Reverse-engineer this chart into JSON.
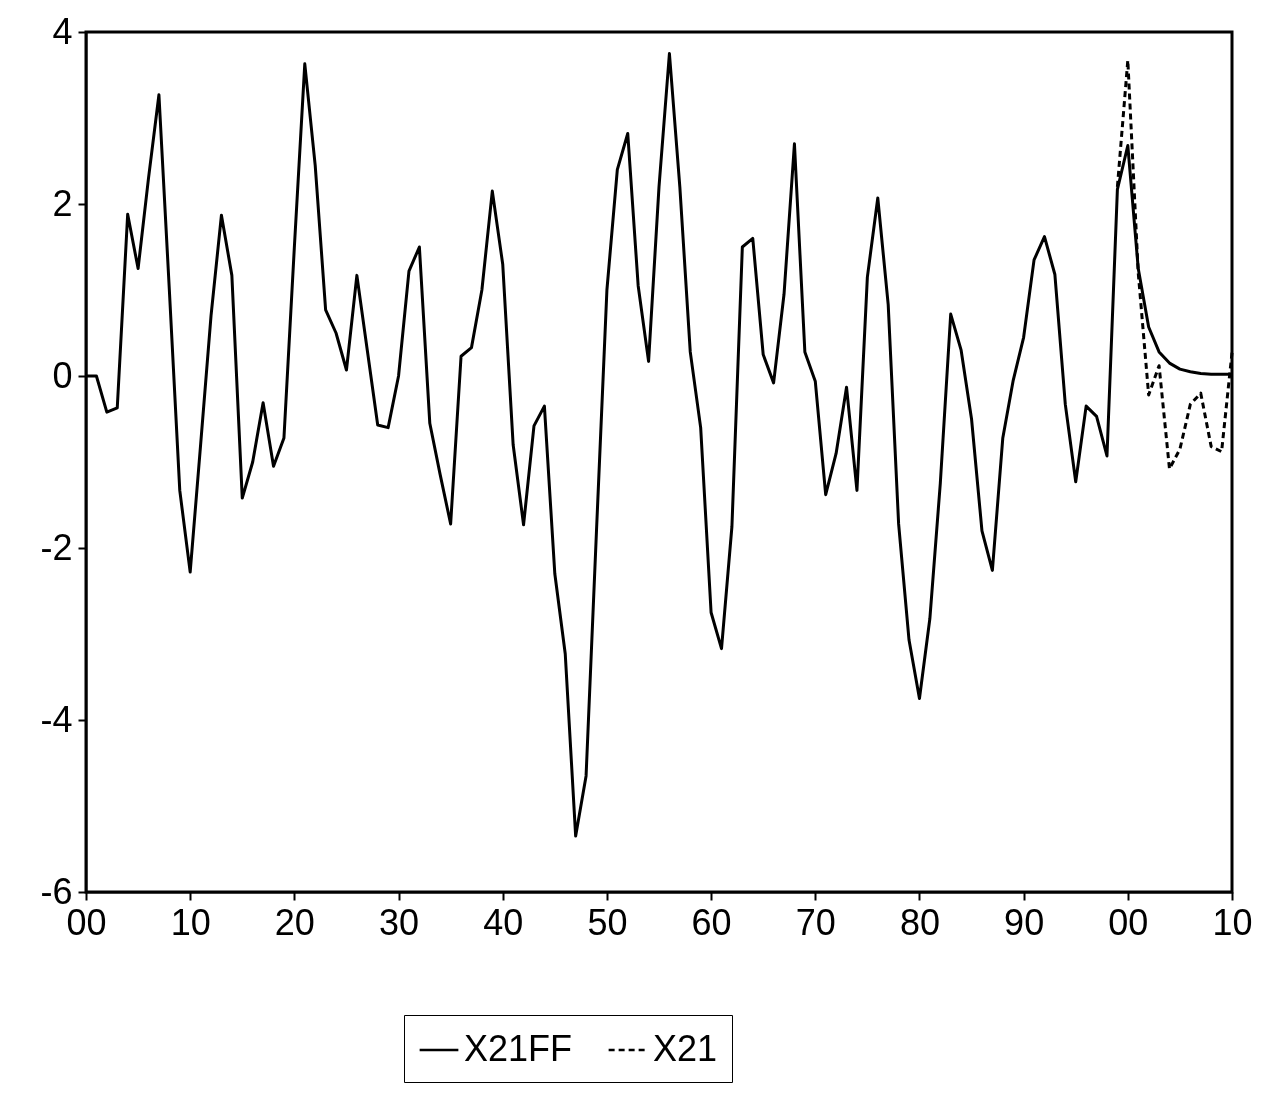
{
  "chart_data": {
    "type": "line",
    "x": [
      1900,
      1901,
      1902,
      1903,
      1904,
      1905,
      1906,
      1907,
      1908,
      1909,
      1910,
      1911,
      1912,
      1913,
      1914,
      1915,
      1916,
      1917,
      1918,
      1919,
      1920,
      1921,
      1922,
      1923,
      1924,
      1925,
      1926,
      1927,
      1928,
      1929,
      1930,
      1931,
      1932,
      1933,
      1934,
      1935,
      1936,
      1937,
      1938,
      1939,
      1940,
      1941,
      1942,
      1943,
      1944,
      1945,
      1946,
      1947,
      1948,
      1949,
      1950,
      1951,
      1952,
      1953,
      1954,
      1955,
      1956,
      1957,
      1958,
      1959,
      1960,
      1961,
      1962,
      1963,
      1964,
      1965,
      1966,
      1967,
      1968,
      1969,
      1970,
      1971,
      1972,
      1973,
      1974,
      1975,
      1976,
      1977,
      1978,
      1979,
      1980,
      1981,
      1982,
      1983,
      1984,
      1985,
      1986,
      1987,
      1988,
      1989,
      1990,
      1991,
      1992,
      1993,
      1994,
      1995,
      1996,
      1997,
      1998,
      1999,
      2000,
      2001,
      2002,
      2003,
      2004,
      2005,
      2006,
      2007,
      2008,
      2009,
      2010
    ],
    "series": [
      {
        "name": "X21FF",
        "color": "#000000",
        "line_style": "solid",
        "values": [
          0,
          0,
          -0.42,
          -0.37,
          1.88,
          1.25,
          2.3,
          3.27,
          1.0,
          -1.33,
          -2.28,
          -0.8,
          0.7,
          1.87,
          1.17,
          -1.42,
          -1.0,
          -0.31,
          -1.05,
          -0.72,
          1.5,
          3.63,
          2.45,
          0.77,
          0.5,
          0.07,
          1.17,
          0.3,
          -0.57,
          -0.6,
          0.0,
          1.22,
          1.5,
          -0.55,
          -1.15,
          -1.72,
          0.23,
          0.33,
          1.0,
          2.15,
          1.3,
          -0.8,
          -1.73,
          -0.58,
          -0.35,
          -2.3,
          -3.23,
          -5.35,
          -4.65,
          -1.8,
          1.0,
          2.4,
          2.82,
          1.05,
          0.17,
          2.2,
          3.75,
          2.2,
          0.28,
          -0.6,
          -2.75,
          -3.17,
          -1.75,
          1.5,
          1.6,
          0.25,
          -0.08,
          0.95,
          2.7,
          0.28,
          -0.06,
          -1.38,
          -0.9,
          -0.13,
          -1.33,
          1.15,
          2.07,
          0.83,
          -1.72,
          -3.07,
          -3.75,
          -2.82,
          -1.25,
          0.72,
          0.3,
          -0.5,
          -1.8,
          -2.26,
          -0.72,
          -0.05,
          0.45,
          1.35,
          1.62,
          1.18,
          -0.33,
          -1.23,
          -0.35,
          -0.47,
          -0.93,
          2.17,
          2.68,
          1.25,
          0.57,
          0.28,
          0.15,
          0.08,
          0.05,
          0.03,
          0.02,
          0.02,
          0.02
        ]
      },
      {
        "name": "X21",
        "color": "#000000",
        "line_style": "dashed",
        "values": [
          null,
          null,
          null,
          null,
          null,
          null,
          null,
          null,
          null,
          null,
          null,
          null,
          null,
          null,
          null,
          null,
          null,
          null,
          null,
          null,
          null,
          null,
          null,
          null,
          null,
          null,
          null,
          null,
          null,
          null,
          null,
          null,
          null,
          null,
          null,
          null,
          null,
          null,
          null,
          null,
          null,
          null,
          null,
          null,
          null,
          null,
          null,
          null,
          null,
          null,
          null,
          null,
          null,
          null,
          null,
          null,
          null,
          null,
          null,
          null,
          null,
          null,
          null,
          null,
          null,
          null,
          null,
          null,
          null,
          null,
          null,
          null,
          null,
          null,
          null,
          null,
          null,
          null,
          null,
          null,
          null,
          null,
          null,
          null,
          null,
          null,
          null,
          null,
          null,
          null,
          null,
          null,
          null,
          null,
          null,
          null,
          null,
          null,
          null,
          2.2,
          3.67,
          1.2,
          -0.22,
          0.12,
          -1.08,
          -0.85,
          -0.33,
          -0.2,
          -0.82,
          -0.88,
          0.27
        ]
      }
    ],
    "xlim": [
      1900,
      2010
    ],
    "xticks": [
      {
        "value": 1900,
        "label": "00"
      },
      {
        "value": 1910,
        "label": "10"
      },
      {
        "value": 1920,
        "label": "20"
      },
      {
        "value": 1930,
        "label": "30"
      },
      {
        "value": 1940,
        "label": "40"
      },
      {
        "value": 1950,
        "label": "50"
      },
      {
        "value": 1960,
        "label": "60"
      },
      {
        "value": 1970,
        "label": "70"
      },
      {
        "value": 1980,
        "label": "80"
      },
      {
        "value": 1990,
        "label": "90"
      },
      {
        "value": 2000,
        "label": "00"
      },
      {
        "value": 2010,
        "label": "10"
      }
    ],
    "ylim": [
      -6,
      4
    ],
    "yticks": [
      -6,
      -4,
      -2,
      0,
      2,
      4
    ],
    "grid": false,
    "legend": "bottom"
  }
}
